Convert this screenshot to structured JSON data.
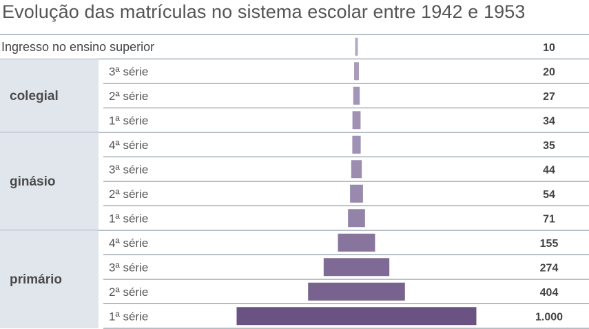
{
  "title": "Evolução das matrículas no sistema escolar entre 1942 e 1953",
  "chart_data": {
    "type": "bar",
    "orientation": "horizontal-centered",
    "title": "Evolução das matrículas no sistema escolar entre 1942 e 1953",
    "top_row": {
      "label": "Ingresso no ensino superior",
      "value": 10,
      "value_label": "10"
    },
    "groups": [
      {
        "name": "colegial",
        "rows": [
          {
            "label": "3ª série",
            "value": 20,
            "value_label": "20"
          },
          {
            "label": "2ª série",
            "value": 27,
            "value_label": "27"
          },
          {
            "label": "1ª série",
            "value": 34,
            "value_label": "34"
          }
        ]
      },
      {
        "name": "ginásio",
        "rows": [
          {
            "label": "4ª série",
            "value": 35,
            "value_label": "35"
          },
          {
            "label": "3ª série",
            "value": 44,
            "value_label": "44"
          },
          {
            "label": "2ª série",
            "value": 54,
            "value_label": "54"
          },
          {
            "label": "1ª série",
            "value": 71,
            "value_label": "71"
          }
        ]
      },
      {
        "name": "primário",
        "rows": [
          {
            "label": "4ª série",
            "value": 155,
            "value_label": "155"
          },
          {
            "label": "3ª série",
            "value": 274,
            "value_label": "274"
          },
          {
            "label": "2ª série",
            "value": 404,
            "value_label": "404"
          },
          {
            "label": "1ª série",
            "value": 1000,
            "value_label": "1.000"
          }
        ]
      }
    ],
    "colors": {
      "bar_light": "#b3a8c6",
      "bar_dark": "#6a5282",
      "group_bg": "#e1e6ec",
      "rule": "#6e7f8e"
    }
  }
}
